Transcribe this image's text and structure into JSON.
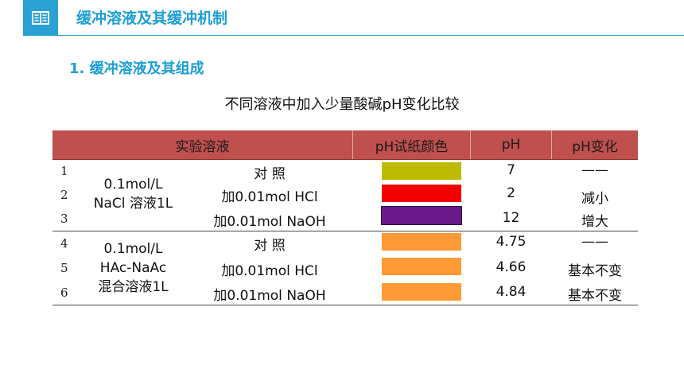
{
  "header": {
    "title": "缓冲溶液及其缓冲机制",
    "icon": "book-icon"
  },
  "section": {
    "heading": "1. 缓冲溶液及其组成"
  },
  "table": {
    "caption": "不同溶液中加入少量酸碱pH变化比较",
    "columns": {
      "solution": "实验溶液",
      "color": "pH试纸颜色",
      "ph": "pH",
      "change": "pH变化"
    },
    "groups": [
      {
        "label_lines": [
          "0.1mol/L",
          "NaCl 溶液1L"
        ],
        "rows": [
          {
            "no": "1",
            "treatment": "对  照",
            "swatch": "#bcbb00",
            "ph": "7",
            "change": "——"
          },
          {
            "no": "2",
            "treatment": "加0.01mol HCl",
            "swatch": "#f20000",
            "ph": "2",
            "change": "减小"
          },
          {
            "no": "3",
            "treatment": "加0.01mol NaOH",
            "swatch": "#6a1a8a",
            "ph": "12",
            "change": "增大"
          }
        ]
      },
      {
        "label_lines": [
          "0.1mol/L",
          "HAc-NaAc",
          "混合溶液1L"
        ],
        "rows": [
          {
            "no": "4",
            "treatment": "对  照",
            "swatch": "#ff9a36",
            "ph": "4.75",
            "change": "——"
          },
          {
            "no": "5",
            "treatment": "加0.01mol HCl",
            "swatch": "#ff9a36",
            "ph": "4.66",
            "change": "基本不变"
          },
          {
            "no": "6",
            "treatment": "加0.01mol NaOH",
            "swatch": "#ff9a36",
            "ph": "4.84",
            "change": "基本不变"
          }
        ]
      }
    ]
  }
}
